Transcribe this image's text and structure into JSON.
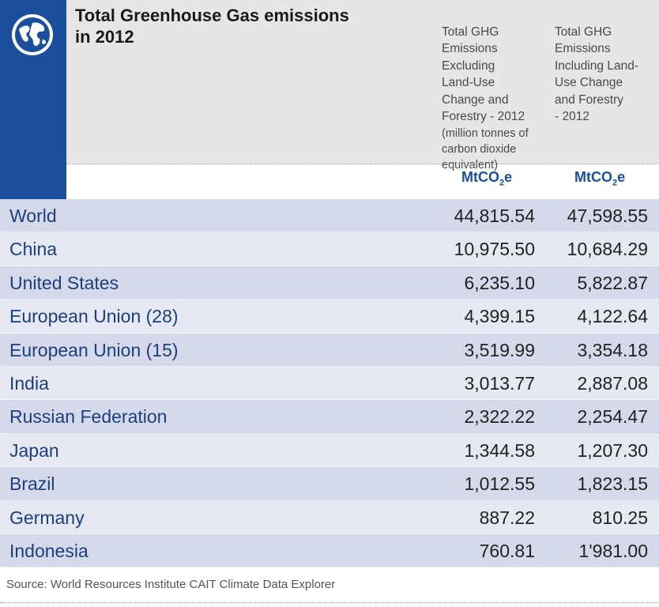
{
  "title": "Total Greenhouse Gas emissions\nin 2012",
  "columns": [
    {
      "heading": "Total GHG\nEmissions\nExcluding\nLand-Use\nChange and\nForestry - 2012",
      "subheading": "(million tonnes of\ncarbon dioxide\nequivalent)",
      "unit_prefix": "MtCO",
      "unit_sub": "2",
      "unit_suffix": "e"
    },
    {
      "heading": "Total GHG\nEmissions\nIncluding Land-\nUse Change\nand Forestry\n- 2012",
      "subheading": "",
      "unit_prefix": "MtCO",
      "unit_sub": "2",
      "unit_suffix": "e"
    }
  ],
  "source": "Source: World Resources Institute CAIT Climate Data Explorer",
  "colors": {
    "brand_blue": "#1b4f9c",
    "row_odd": "#d5d9ea",
    "row_even": "#e6e8f2",
    "header_gray": "#e6e6e6"
  },
  "icons": {
    "logo": "globe-icon"
  },
  "chart_data": {
    "type": "table",
    "title": "Total Greenhouse Gas emissions in 2012",
    "columns": [
      "Total GHG Emissions Excluding Land-Use Change and Forestry - 2012",
      "Total GHG Emissions Including Land-Use Change and Forestry - 2012"
    ],
    "rows": [
      {
        "name": "World",
        "v1": "44,815.54",
        "v2": "47,598.55"
      },
      {
        "name": "China",
        "v1": "10,975.50",
        "v2": "10,684.29"
      },
      {
        "name": "United States",
        "v1": "6,235.10",
        "v2": "5,822.87"
      },
      {
        "name": "European Union (28)",
        "v1": "4,399.15",
        "v2": "4,122.64"
      },
      {
        "name": "European Union (15)",
        "v1": "3,519.99",
        "v2": "3,354.18"
      },
      {
        "name": "India",
        "v1": "3,013.77",
        "v2": "2,887.08"
      },
      {
        "name": "Russian Federation",
        "v1": "2,322.22",
        "v2": "2,254.47"
      },
      {
        "name": "Japan",
        "v1": "1,344.58",
        "v2": "1,207.30"
      },
      {
        "name": "Brazil",
        "v1": "1,012.55",
        "v2": "1,823.15"
      },
      {
        "name": "Germany",
        "v1": "887.22",
        "v2": "810.25"
      },
      {
        "name": "Indonesia",
        "v1": "760.81",
        "v2": "1'981.00"
      }
    ]
  }
}
